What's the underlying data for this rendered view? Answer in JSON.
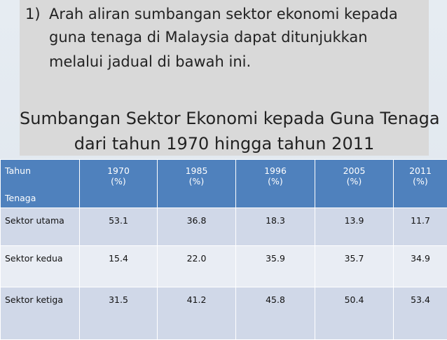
{
  "question": {
    "number": "1)",
    "lines": [
      "Arah aliran sumbangan sektor ekonomi kepada",
      "guna tenaga di Malaysia dapat ditunjukkan",
      "melalui jadual di bawah ini."
    ]
  },
  "heading": {
    "lines": [
      "Sumbangan Sektor Ekonomi kepada Guna Tenaga",
      "dari tahun 1970 hingga tahun 2011"
    ]
  },
  "table": {
    "corner": {
      "top": "Tahun",
      "bottom": "Tenaga"
    },
    "columns": [
      {
        "year": "1970",
        "unit": "(%)"
      },
      {
        "year": "1985",
        "unit": "(%)"
      },
      {
        "year": "1996",
        "unit": "(%)"
      },
      {
        "year": "2005",
        "unit": "(%)"
      },
      {
        "year": "2011",
        "unit": "(%)"
      }
    ],
    "rows": [
      [
        "Sektor utama",
        "53.1",
        "36.8",
        "18.3",
        "13.9",
        "11.7"
      ],
      [
        "Sektor kedua",
        "15.4",
        "22.0",
        "35.9",
        "35.7",
        "34.9"
      ],
      [
        "Sektor ketiga",
        "31.5",
        "41.2",
        "45.8",
        "50.4",
        "53.4"
      ]
    ]
  }
}
